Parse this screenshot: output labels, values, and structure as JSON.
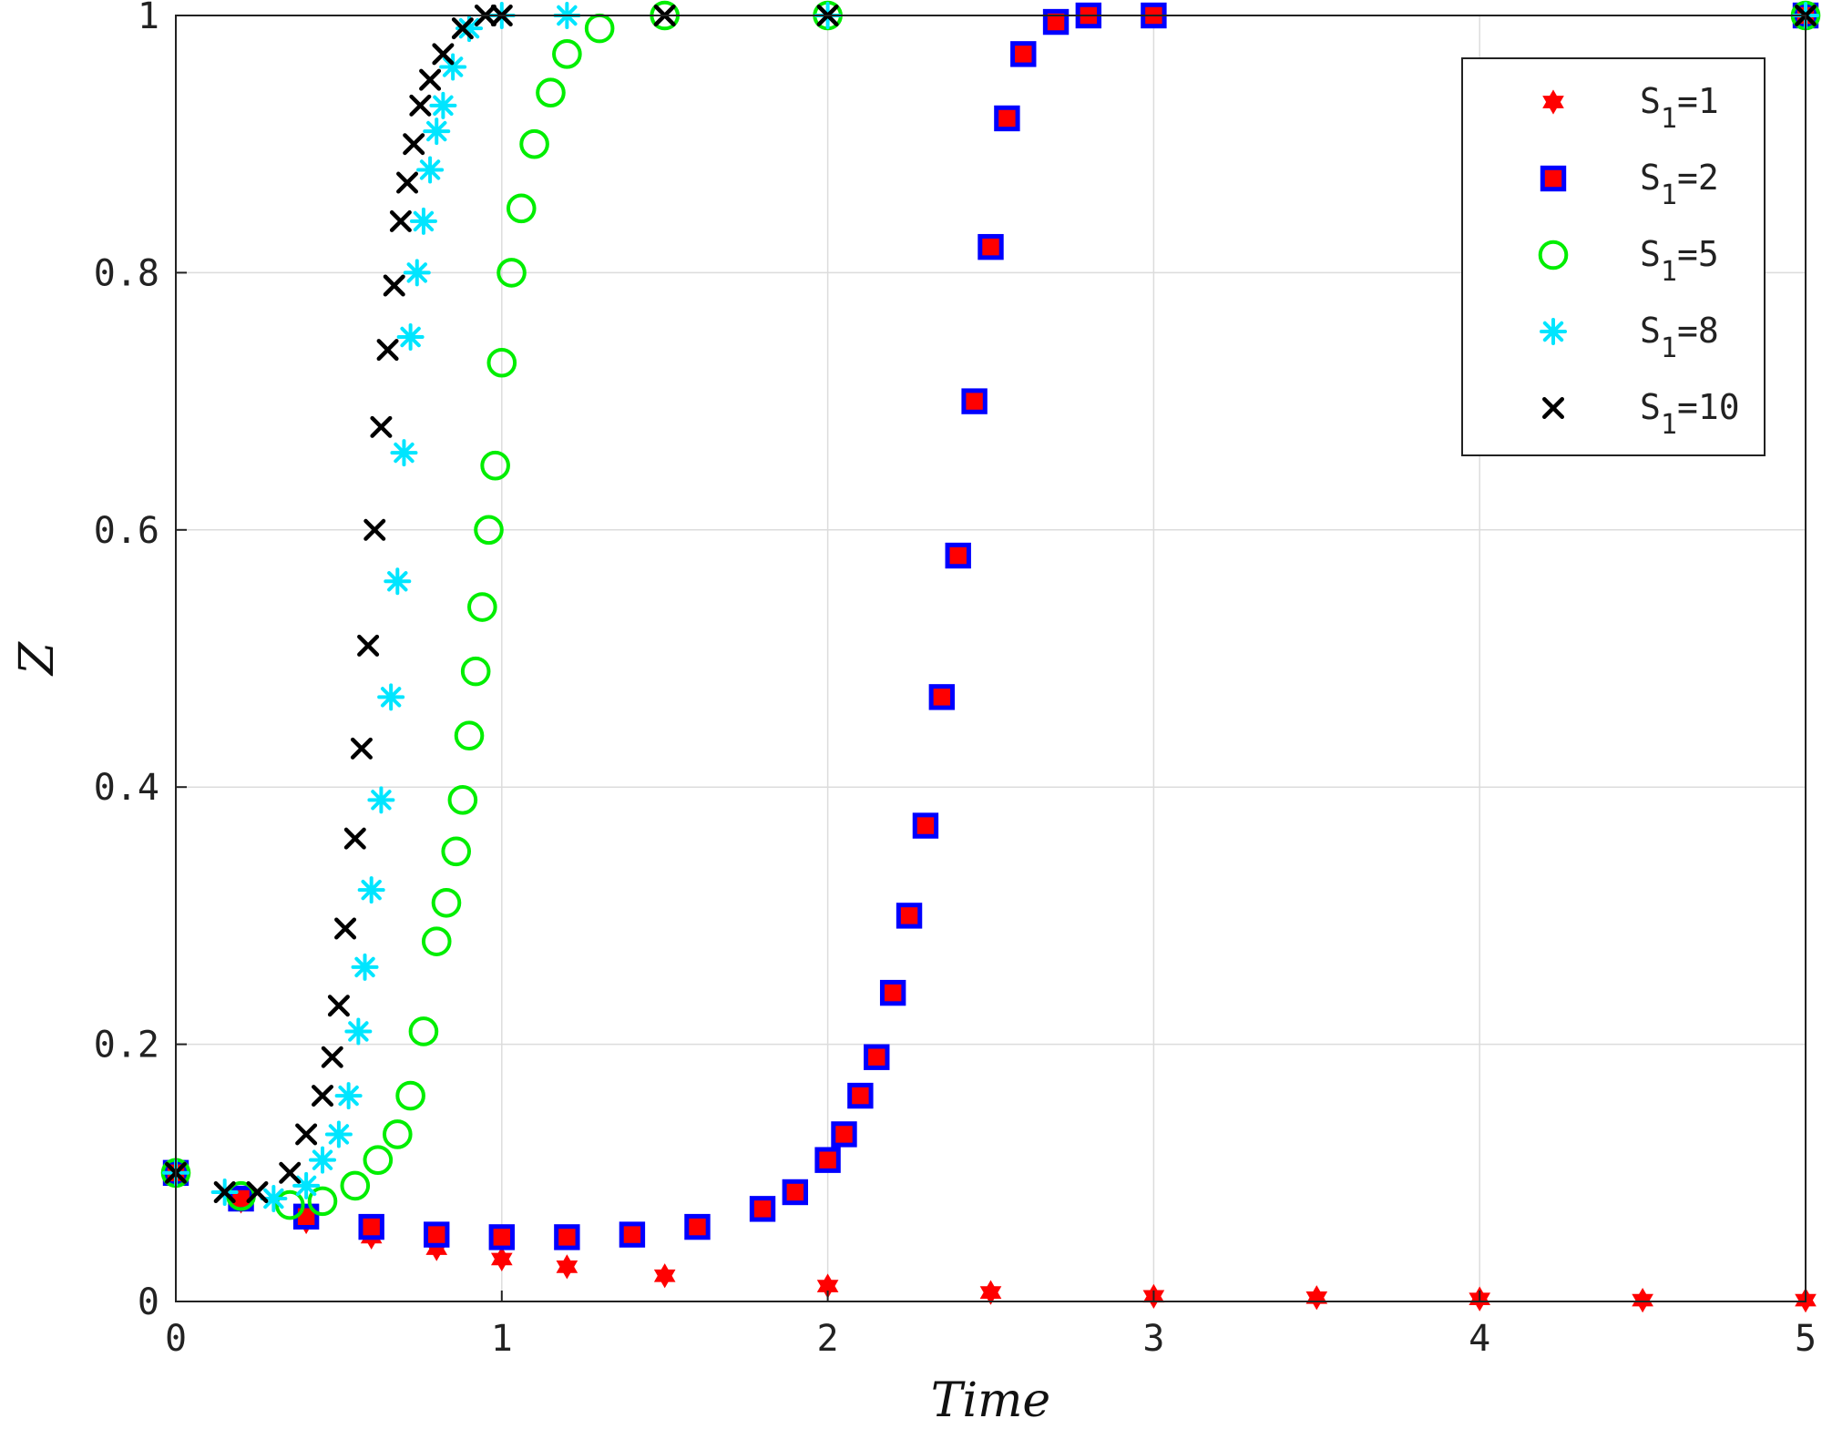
{
  "chart_data": {
    "type": "scatter",
    "title": "",
    "xlabel": "Time",
    "ylabel": "Z",
    "xlim": [
      0,
      5
    ],
    "ylim": [
      0,
      1
    ],
    "xticks": [
      "0",
      "1",
      "2",
      "3",
      "4",
      "5"
    ],
    "yticks": [
      "0",
      "0.2",
      "0.4",
      "0.6",
      "0.8",
      "1"
    ],
    "grid": true,
    "legend_position": "top-right",
    "legend": [
      {
        "prefix": "S",
        "sub": "1",
        "suffix": "=1"
      },
      {
        "prefix": "S",
        "sub": "1",
        "suffix": "=2"
      },
      {
        "prefix": "S",
        "sub": "1",
        "suffix": "=5"
      },
      {
        "prefix": "S",
        "sub": "1",
        "suffix": "=8"
      },
      {
        "prefix": "S",
        "sub": "1",
        "suffix": "=10"
      }
    ],
    "series": [
      {
        "name": "S1=1",
        "marker": "hexagram",
        "color": "#ff0000",
        "edge": "#ff0000",
        "x": [
          0,
          0.2,
          0.4,
          0.6,
          0.8,
          1.0,
          1.2,
          1.5,
          2.0,
          2.5,
          3.0,
          3.5,
          4.0,
          4.5,
          5.0
        ],
        "y": [
          0.1,
          0.078,
          0.062,
          0.05,
          0.041,
          0.033,
          0.027,
          0.02,
          0.012,
          0.007,
          0.004,
          0.003,
          0.002,
          0.001,
          0.001
        ]
      },
      {
        "name": "S1=2",
        "marker": "square",
        "color": "#ff0000",
        "edge": "#0000ff",
        "x": [
          0,
          0.2,
          0.4,
          0.6,
          0.8,
          1.0,
          1.2,
          1.4,
          1.6,
          1.8,
          1.9,
          2.0,
          2.05,
          2.1,
          2.15,
          2.2,
          2.25,
          2.3,
          2.35,
          2.4,
          2.45,
          2.5,
          2.55,
          2.6,
          2.7,
          2.8,
          3.0,
          5.0
        ],
        "y": [
          0.1,
          0.08,
          0.066,
          0.058,
          0.052,
          0.05,
          0.05,
          0.052,
          0.058,
          0.072,
          0.085,
          0.11,
          0.13,
          0.16,
          0.19,
          0.24,
          0.3,
          0.37,
          0.47,
          0.58,
          0.7,
          0.82,
          0.92,
          0.97,
          0.995,
          1.0,
          1.0,
          1.0
        ]
      },
      {
        "name": "S1=5",
        "marker": "circle",
        "color": "#00ee00",
        "edge": "#00ee00",
        "x": [
          0,
          0.2,
          0.35,
          0.45,
          0.55,
          0.62,
          0.68,
          0.72,
          0.76,
          0.8,
          0.83,
          0.86,
          0.88,
          0.9,
          0.92,
          0.94,
          0.96,
          0.98,
          1.0,
          1.03,
          1.06,
          1.1,
          1.15,
          1.2,
          1.3,
          1.5,
          2.0,
          5.0
        ],
        "y": [
          0.1,
          0.082,
          0.075,
          0.078,
          0.09,
          0.11,
          0.13,
          0.16,
          0.21,
          0.28,
          0.31,
          0.35,
          0.39,
          0.44,
          0.49,
          0.54,
          0.6,
          0.65,
          0.73,
          0.8,
          0.85,
          0.9,
          0.94,
          0.97,
          0.99,
          1.0,
          1.0,
          1.0
        ]
      },
      {
        "name": "S1=8",
        "marker": "asterisk",
        "color": "#00e5ff",
        "edge": "#00e5ff",
        "x": [
          0,
          0.15,
          0.3,
          0.4,
          0.45,
          0.5,
          0.53,
          0.56,
          0.58,
          0.6,
          0.63,
          0.66,
          0.68,
          0.7,
          0.72,
          0.74,
          0.76,
          0.78,
          0.8,
          0.82,
          0.85,
          0.9,
          1.0,
          1.2,
          2.0,
          5.0
        ],
        "y": [
          0.1,
          0.085,
          0.08,
          0.09,
          0.11,
          0.13,
          0.16,
          0.21,
          0.26,
          0.32,
          0.39,
          0.47,
          0.56,
          0.66,
          0.75,
          0.8,
          0.84,
          0.88,
          0.91,
          0.93,
          0.96,
          0.99,
          1.0,
          1.0,
          1.0,
          1.0
        ]
      },
      {
        "name": "S1=10",
        "marker": "x",
        "color": "#000000",
        "edge": "#000000",
        "x": [
          0,
          0.15,
          0.25,
          0.35,
          0.4,
          0.45,
          0.48,
          0.5,
          0.52,
          0.55,
          0.57,
          0.59,
          0.61,
          0.63,
          0.65,
          0.67,
          0.69,
          0.71,
          0.73,
          0.75,
          0.78,
          0.82,
          0.88,
          0.95,
          1.0,
          1.5,
          2.0,
          5.0
        ],
        "y": [
          0.1,
          0.085,
          0.085,
          0.1,
          0.13,
          0.16,
          0.19,
          0.23,
          0.29,
          0.36,
          0.43,
          0.51,
          0.6,
          0.68,
          0.74,
          0.79,
          0.84,
          0.87,
          0.9,
          0.93,
          0.95,
          0.97,
          0.99,
          1.0,
          1.0,
          1.0,
          1.0,
          1.0
        ]
      }
    ]
  }
}
